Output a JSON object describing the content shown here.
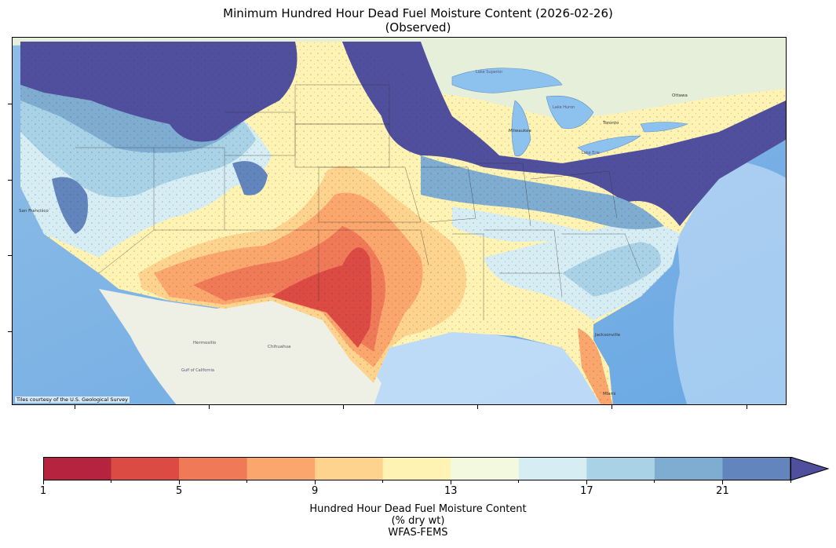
{
  "title": {
    "line1": "Minimum Hundred Hour Dead Fuel Moisture Content (2026-02-26)",
    "line2": "(Observed)"
  },
  "map": {
    "attribution": "Tiles courtesy of the U.S. Geological Survey",
    "basemap_labels": [
      "Chihuahua",
      "Hermosillo",
      "Gulf of California",
      "San Francisco",
      "Milwaukee",
      "Lake Superior",
      "Lake Huron",
      "Lake Erie",
      "Toronto",
      "Ottawa",
      "Jacksonville",
      "Miami"
    ]
  },
  "colorbar": {
    "label_line1": "Hundred Hour Dead Fuel Moisture Content",
    "label_line2": "(% dry wt)",
    "label_line3": "WFAS-FEMS",
    "ticks": [
      1,
      5,
      9,
      13,
      17,
      21
    ],
    "min": 1,
    "max": 23,
    "extend": "max",
    "colors": [
      "#b5233f",
      "#dc4a44",
      "#f07a58",
      "#fba66c",
      "#fdd38d",
      "#fef3b3",
      "#f2f9de",
      "#d6edf3",
      "#a9d2e6",
      "#7fadd1",
      "#6285bd",
      "#4f4f9e"
    ]
  }
}
